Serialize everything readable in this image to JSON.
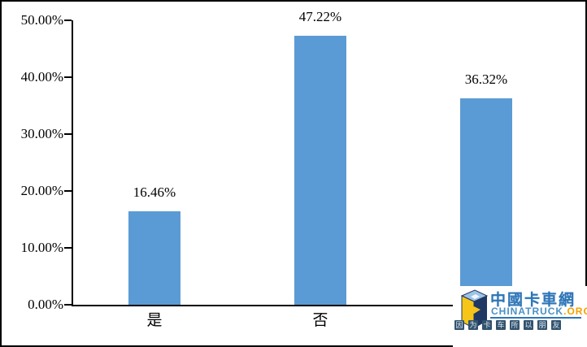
{
  "chart_data": {
    "type": "bar",
    "categories": [
      "是",
      "否",
      ""
    ],
    "values": [
      16.46,
      47.22,
      36.32
    ],
    "data_labels": [
      "16.46%",
      "47.22%",
      "36.32%"
    ],
    "title": "",
    "xlabel": "",
    "ylabel": "",
    "ylim": [
      0,
      50
    ],
    "ytick_step": 10,
    "ytick_labels": [
      "0.00%",
      "10.00%",
      "20.00%",
      "30.00%",
      "40.00%",
      "50.00%"
    ],
    "grid": false,
    "legend": false,
    "bar_color": "#5B9BD5",
    "axis_color": "#000000"
  },
  "watermark": {
    "brand_cn": "中國卡車網",
    "brand_en": "CHINATRUCK",
    "brand_tld": ".ORG",
    "tagline_chars": [
      "因",
      "为",
      "卡",
      "车",
      "所",
      "以",
      "朋",
      "友"
    ],
    "colors": {
      "blue": "#2E75B6",
      "light_blue": "#9DC3E6",
      "navy": "#1F3864",
      "gold": "#F5C518",
      "orange": "#F4A100",
      "tagline_box": "#33536F"
    }
  }
}
